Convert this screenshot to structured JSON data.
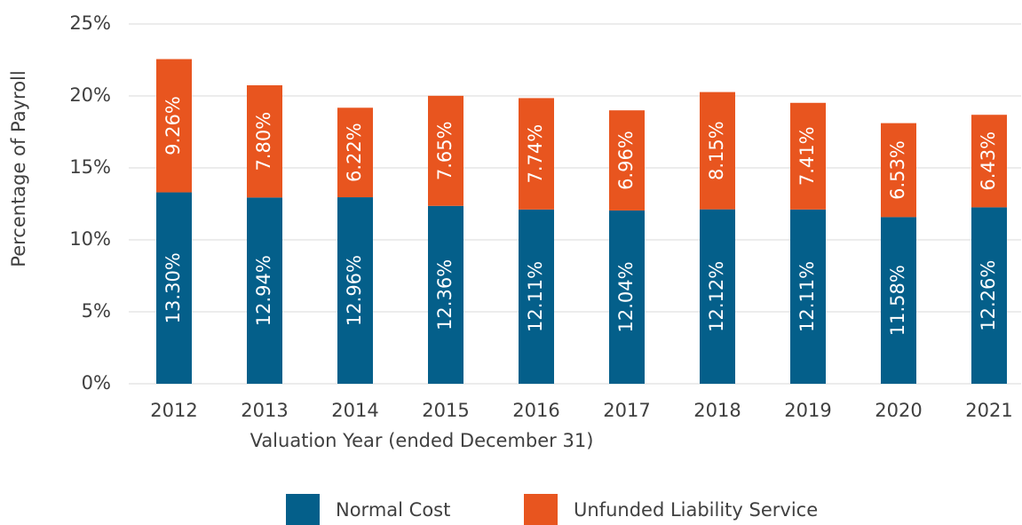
{
  "chart_data": {
    "type": "stacked_bar",
    "x_label": "Valuation Year (ended December 31)",
    "y_label": "Percentage of Payroll",
    "categories": [
      "2012",
      "2013",
      "2014",
      "2015",
      "2016",
      "2017",
      "2018",
      "2019",
      "2020",
      "2021"
    ],
    "series": [
      {
        "name": "Normal Cost",
        "color": "#045f8a",
        "values": [
          13.3,
          12.94,
          12.96,
          12.36,
          12.11,
          12.04,
          12.12,
          12.11,
          11.58,
          12.26
        ],
        "value_labels": [
          "13.30%",
          "12.94%",
          "12.96%",
          "12.36%",
          "12.11%",
          "12.04%",
          "12.12%",
          "12.11%",
          "11.58%",
          "12.26%"
        ]
      },
      {
        "name": "Unfunded Liability Service",
        "color": "#e8551f",
        "values": [
          9.26,
          7.8,
          6.22,
          7.65,
          7.74,
          6.96,
          8.15,
          7.41,
          6.53,
          6.43
        ],
        "value_labels": [
          "9.26%",
          "7.80%",
          "6.22%",
          "7.65%",
          "7.74%",
          "6.96%",
          "8.15%",
          "7.41%",
          "6.53%",
          "6.43%"
        ]
      }
    ],
    "ylim": [
      0,
      25
    ],
    "yticks": [
      {
        "value": 0,
        "label": "0%"
      },
      {
        "value": 5,
        "label": "5%"
      },
      {
        "value": 10,
        "label": "10%"
      },
      {
        "value": 15,
        "label": "15%"
      },
      {
        "value": 20,
        "label": "20%"
      },
      {
        "value": 25,
        "label": "25%"
      }
    ],
    "grid": true,
    "legend": "bottom"
  }
}
